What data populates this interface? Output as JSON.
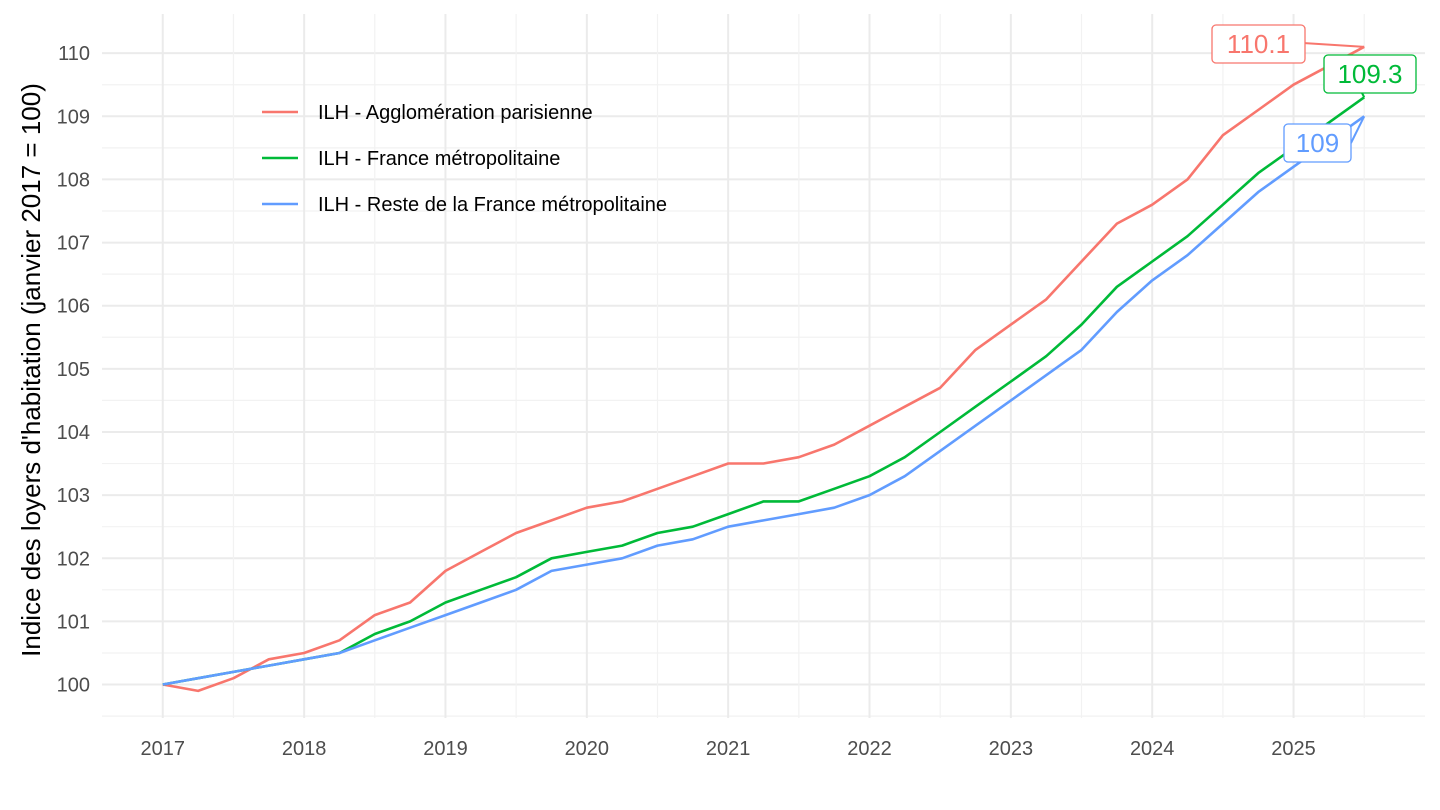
{
  "chart_data": {
    "type": "line",
    "xlabel": "",
    "ylabel": "Indice des loyers d'habitation (janvier 2017 = 100)",
    "xlim": [
      2016.57,
      2025.93
    ],
    "ylim": [
      99.47,
      110.62
    ],
    "x_ticks": [
      "2017",
      "2018",
      "2019",
      "2020",
      "2021",
      "2022",
      "2023",
      "2024",
      "2025"
    ],
    "y_ticks": [
      "100",
      "101",
      "102",
      "103",
      "104",
      "105",
      "106",
      "107",
      "108",
      "109",
      "110"
    ],
    "grid": true,
    "legend_position": "top-left",
    "x": [
      "2017-01",
      "2017-04",
      "2017-07",
      "2017-10",
      "2018-01",
      "2018-04",
      "2018-07",
      "2018-10",
      "2019-01",
      "2019-04",
      "2019-07",
      "2019-10",
      "2020-01",
      "2020-04",
      "2020-07",
      "2020-10",
      "2021-01",
      "2021-04",
      "2021-07",
      "2021-10",
      "2022-01",
      "2022-04",
      "2022-07",
      "2022-10",
      "2023-01",
      "2023-04",
      "2023-07",
      "2023-10",
      "2024-01",
      "2024-04",
      "2024-07",
      "2024-10",
      "2025-01",
      "2025-04",
      "2025-07"
    ],
    "series": [
      {
        "name": "ILH - Agglomération parisienne",
        "color": "#F8766D",
        "end_label": "110.1",
        "values": [
          100.0,
          99.9,
          100.1,
          100.4,
          100.5,
          100.7,
          101.1,
          101.3,
          101.8,
          102.1,
          102.4,
          102.6,
          102.8,
          102.9,
          103.1,
          103.3,
          103.5,
          103.5,
          103.6,
          103.8,
          104.1,
          104.4,
          104.7,
          105.3,
          105.7,
          106.1,
          106.7,
          107.3,
          107.6,
          108.0,
          108.7,
          109.1,
          109.5,
          109.8,
          110.1
        ]
      },
      {
        "name": "ILH - France métropolitaine",
        "color": "#00BA38",
        "end_label": "109.3",
        "values": [
          100.0,
          100.1,
          100.2,
          100.3,
          100.4,
          100.5,
          100.8,
          101.0,
          101.3,
          101.5,
          101.7,
          102.0,
          102.1,
          102.2,
          102.4,
          102.5,
          102.7,
          102.9,
          102.9,
          103.1,
          103.3,
          103.6,
          104.0,
          104.4,
          104.8,
          105.2,
          105.7,
          106.3,
          106.7,
          107.1,
          107.6,
          108.1,
          108.5,
          108.9,
          109.3
        ]
      },
      {
        "name": "ILH - Reste de la France métropolitaine",
        "color": "#619CFF",
        "end_label": "109",
        "values": [
          100.0,
          100.1,
          100.2,
          100.3,
          100.4,
          100.5,
          100.7,
          100.9,
          101.1,
          101.3,
          101.5,
          101.8,
          101.9,
          102.0,
          102.2,
          102.3,
          102.5,
          102.6,
          102.7,
          102.8,
          103.0,
          103.3,
          103.7,
          104.1,
          104.5,
          104.9,
          105.3,
          105.9,
          106.4,
          106.8,
          107.3,
          107.8,
          108.2,
          108.6,
          109.0
        ]
      }
    ]
  }
}
